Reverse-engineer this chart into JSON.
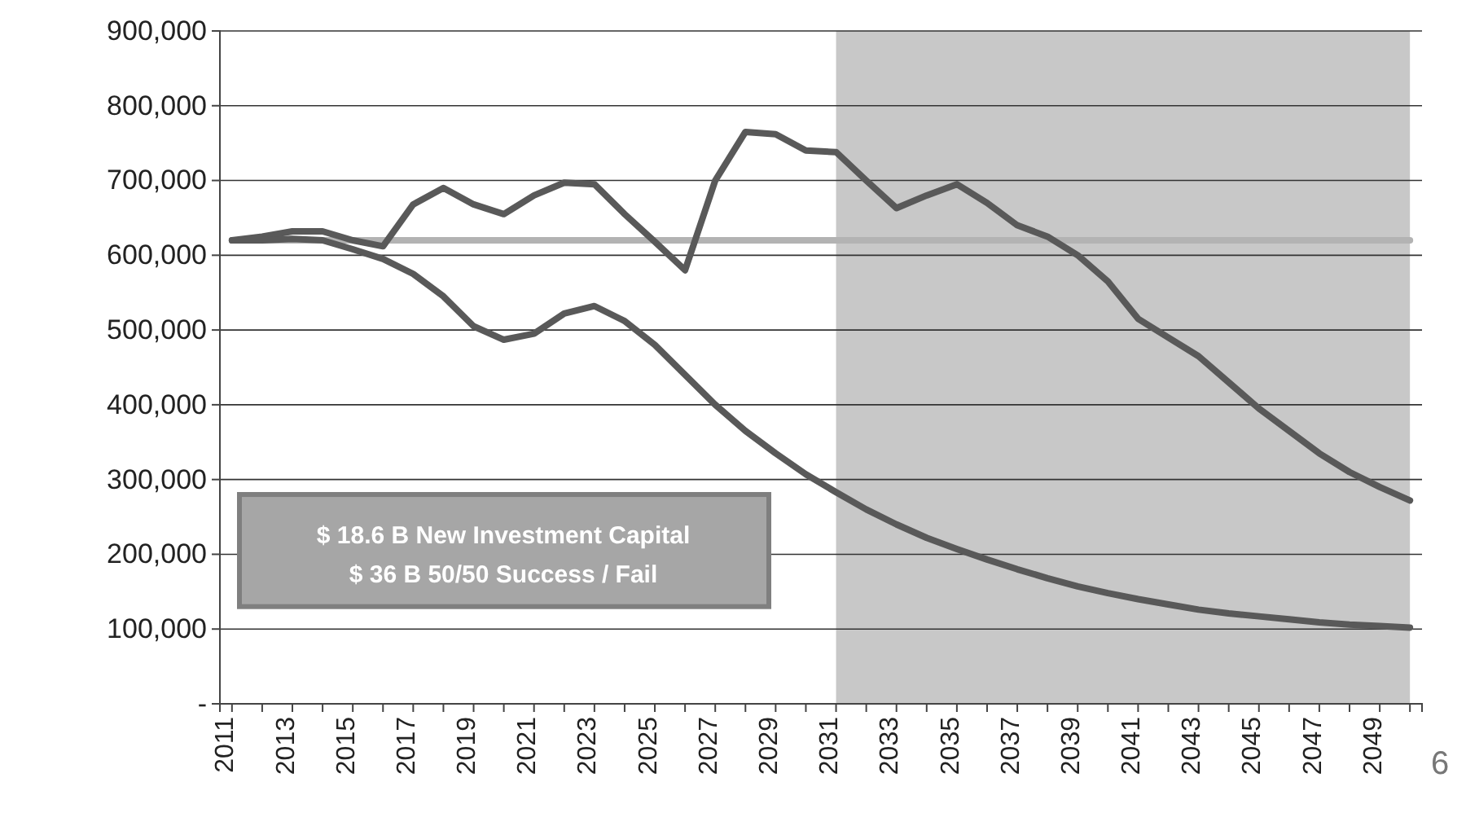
{
  "chart_data": {
    "type": "line",
    "x": [
      2011,
      2012,
      2013,
      2014,
      2015,
      2016,
      2017,
      2018,
      2019,
      2020,
      2021,
      2022,
      2023,
      2024,
      2025,
      2026,
      2027,
      2028,
      2029,
      2030,
      2031,
      2032,
      2033,
      2034,
      2035,
      2036,
      2037,
      2038,
      2039,
      2040,
      2041,
      2042,
      2043,
      2044,
      2045,
      2046,
      2047,
      2048,
      2049,
      2050
    ],
    "series": [
      {
        "color": "#b3b3b3",
        "values": [
          620000,
          620000,
          620000,
          620000,
          620000,
          620000,
          620000,
          620000,
          620000,
          620000,
          620000,
          620000,
          620000,
          620000,
          620000,
          620000,
          620000,
          620000,
          620000,
          620000,
          620000,
          620000,
          620000,
          620000,
          620000,
          620000,
          620000,
          620000,
          620000,
          620000,
          620000,
          620000,
          620000,
          620000,
          620000,
          620000,
          620000,
          620000,
          620000,
          620000
        ]
      },
      {
        "color": "#595959",
        "values": [
          620000,
          625000,
          632000,
          632000,
          620000,
          612000,
          668000,
          690000,
          668000,
          655000,
          680000,
          697000,
          695000,
          655000,
          618000,
          580000,
          700000,
          765000,
          762000,
          740000,
          738000,
          700000,
          663000,
          680000,
          695000,
          670000,
          640000,
          625000,
          600000,
          565000,
          515000,
          490000,
          465000,
          430000,
          395000,
          365000,
          335000,
          310000,
          290000,
          272000
        ]
      },
      {
        "color": "#595959",
        "values": [
          620000,
          620000,
          622000,
          620000,
          608000,
          595000,
          575000,
          545000,
          505000,
          487000,
          495000,
          522000,
          532000,
          512000,
          480000,
          440000,
          400000,
          365000,
          335000,
          307000,
          283000,
          260000,
          240000,
          222000,
          207000,
          193000,
          180000,
          168000,
          157000,
          148000,
          140000,
          133000,
          126000,
          121000,
          117000,
          113000,
          109000,
          106000,
          104000,
          102000
        ]
      }
    ],
    "xlim": [
      2010.6,
      2050.4
    ],
    "xticks": [
      {
        "value": 2011,
        "label": "2011"
      },
      {
        "value": 2012,
        "label": null
      },
      {
        "value": 2013,
        "label": "2013"
      },
      {
        "value": 2014,
        "label": null
      },
      {
        "value": 2015,
        "label": "2015"
      },
      {
        "value": 2016,
        "label": null
      },
      {
        "value": 2017,
        "label": "2017"
      },
      {
        "value": 2018,
        "label": null
      },
      {
        "value": 2019,
        "label": "2019"
      },
      {
        "value": 2020,
        "label": null
      },
      {
        "value": 2021,
        "label": "2021"
      },
      {
        "value": 2022,
        "label": null
      },
      {
        "value": 2023,
        "label": "2023"
      },
      {
        "value": 2024,
        "label": null
      },
      {
        "value": 2025,
        "label": "2025"
      },
      {
        "value": 2026,
        "label": null
      },
      {
        "value": 2027,
        "label": "2027"
      },
      {
        "value": 2028,
        "label": null
      },
      {
        "value": 2029,
        "label": "2029"
      },
      {
        "value": 2030,
        "label": null
      },
      {
        "value": 2031,
        "label": "2031"
      },
      {
        "value": 2032,
        "label": null
      },
      {
        "value": 2033,
        "label": "2033"
      },
      {
        "value": 2034,
        "label": null
      },
      {
        "value": 2035,
        "label": "2035"
      },
      {
        "value": 2036,
        "label": null
      },
      {
        "value": 2037,
        "label": "2037"
      },
      {
        "value": 2038,
        "label": null
      },
      {
        "value": 2039,
        "label": "2039"
      },
      {
        "value": 2040,
        "label": null
      },
      {
        "value": 2041,
        "label": "2041"
      },
      {
        "value": 2042,
        "label": null
      },
      {
        "value": 2043,
        "label": "2043"
      },
      {
        "value": 2044,
        "label": null
      },
      {
        "value": 2045,
        "label": "2045"
      },
      {
        "value": 2046,
        "label": null
      },
      {
        "value": 2047,
        "label": "2047"
      },
      {
        "value": 2048,
        "label": null
      },
      {
        "value": 2049,
        "label": "2049"
      },
      {
        "value": 2050,
        "label": null
      }
    ],
    "ylim": [
      0,
      900000
    ],
    "yticks": [
      {
        "value": 0,
        "label": "-"
      },
      {
        "value": 100000,
        "label": "100,000"
      },
      {
        "value": 200000,
        "label": "200,000"
      },
      {
        "value": 300000,
        "label": "300,000"
      },
      {
        "value": 400000,
        "label": "400,000"
      },
      {
        "value": 500000,
        "label": "500,000"
      },
      {
        "value": 600000,
        "label": "600,000"
      },
      {
        "value": 700000,
        "label": "700,000"
      },
      {
        "value": 800000,
        "label": "800,000"
      },
      {
        "value": 900000,
        "label": "900,000"
      }
    ],
    "grid": "y",
    "line_style": "solid",
    "bands": [
      {
        "axis": "x",
        "from": 2031,
        "to": 2050,
        "color": "#c8c8c8"
      }
    ],
    "annotations": [
      "$ 18.6 B New Investment Capital",
      "$ 36 B  50/50 Success / Fail",
      "6"
    ]
  }
}
